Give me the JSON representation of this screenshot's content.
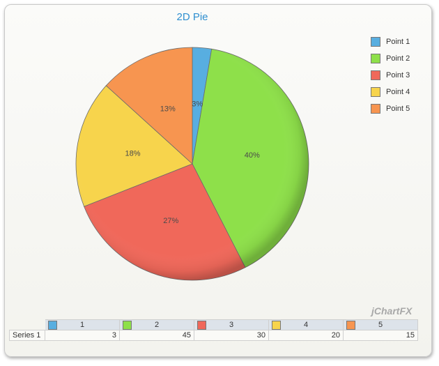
{
  "chart_data": {
    "type": "pie",
    "title": "2D Pie",
    "categories": [
      "Point 1",
      "Point 2",
      "Point 3",
      "Point 4",
      "Point 5"
    ],
    "values": [
      3,
      45,
      30,
      20,
      15
    ],
    "percent_labels": [
      "3%",
      "40%",
      "27%",
      "18%",
      "13%"
    ],
    "colors": [
      "#58aee0",
      "#8ee04a",
      "#f0685a",
      "#f7d44c",
      "#f79550"
    ],
    "legend_position": "top-right",
    "series": [
      {
        "name": "Series 1",
        "values": [
          3,
          45,
          30,
          20,
          15
        ]
      }
    ]
  },
  "legend": {
    "items": [
      {
        "label": "Point 1",
        "color": "#58aee0"
      },
      {
        "label": "Point 2",
        "color": "#8ee04a"
      },
      {
        "label": "Point 3",
        "color": "#f0685a"
      },
      {
        "label": "Point 4",
        "color": "#f7d44c"
      },
      {
        "label": "Point 5",
        "color": "#f79550"
      }
    ]
  },
  "table": {
    "headers": [
      "1",
      "2",
      "3",
      "4",
      "5"
    ],
    "row_label": "Series 1",
    "values": [
      "3",
      "45",
      "30",
      "20",
      "15"
    ]
  },
  "watermark": "jChartFX"
}
